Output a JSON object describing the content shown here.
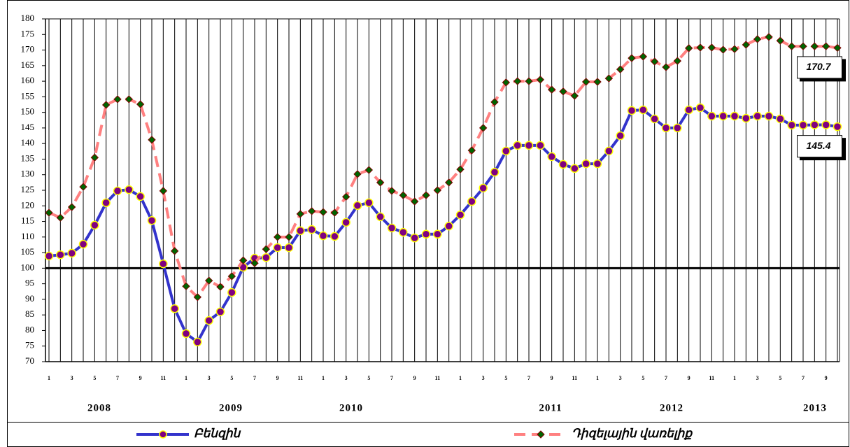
{
  "chart_data": {
    "type": "line",
    "categories": [
      "1",
      null,
      "3",
      null,
      "5",
      null,
      "7",
      null,
      "9",
      null,
      "11",
      null,
      "1",
      null,
      "3",
      null,
      "5",
      null,
      "7",
      null,
      "9",
      null,
      "11",
      null,
      "1",
      null,
      "3",
      null,
      "5",
      null,
      "7",
      null,
      "9",
      null,
      "11",
      null,
      "1",
      null,
      "3",
      null,
      "5",
      null,
      "7",
      null,
      "9",
      null,
      "11",
      null,
      "1",
      null,
      "3",
      null,
      "5",
      null,
      "7",
      null,
      "9",
      null,
      "11",
      null,
      "1",
      null,
      "3",
      null,
      "5",
      null,
      "7",
      null,
      "9",
      null
    ],
    "year_labels": [
      "2008",
      "2009",
      "2010",
      "2011",
      "2012",
      "2013"
    ],
    "ylim": [
      70,
      180
    ],
    "yticks": [
      70,
      75,
      80,
      85,
      90,
      95,
      100,
      105,
      110,
      115,
      120,
      125,
      130,
      135,
      140,
      145,
      150,
      155,
      160,
      165,
      170,
      175,
      180
    ],
    "reference_line": 100,
    "grid": true,
    "series": [
      {
        "name": "Բենզին",
        "color": "#3333cc",
        "marker_fill": "#800080",
        "marker_stroke": "#ffff00",
        "values": [
          103.9,
          104.3,
          104.8,
          107.7,
          113.8,
          121,
          124.8,
          125.2,
          123,
          115.3,
          101.4,
          87,
          79,
          76.3,
          83.2,
          86,
          92.2,
          100.3,
          103.2,
          103.4,
          106.6,
          106.6,
          112,
          112.4,
          110.4,
          110.2,
          114.7,
          120.1,
          121,
          116.5,
          112.9,
          111.5,
          109.7,
          110.9,
          110.9,
          113.5,
          117.1,
          121.4,
          125.7,
          130.8,
          137.6,
          139.4,
          139.4,
          139.4,
          135.8,
          133.3,
          132,
          133.5,
          133.5,
          137.6,
          142.5,
          150.6,
          150.8,
          147.9,
          145,
          145,
          150.8,
          151.5,
          148.8,
          148.8,
          148.8,
          148.1,
          148.8,
          148.8,
          147.9,
          145.9,
          145.9,
          146,
          146,
          145.4
        ],
        "value_labels": [
          null,
          null,
          null,
          null,
          null,
          null,
          null,
          null,
          null,
          null,
          null,
          null,
          null,
          null,
          null,
          null,
          null,
          null,
          null,
          null,
          null,
          null,
          null,
          null,
          null,
          null,
          null,
          null,
          null,
          null,
          null,
          null,
          null,
          null,
          null,
          null,
          null,
          null,
          null,
          null,
          null,
          null,
          null,
          null,
          null,
          null,
          null,
          null,
          null,
          null,
          null,
          null,
          null,
          null,
          null,
          null,
          null,
          null,
          null,
          null,
          null,
          null,
          null,
          null,
          null,
          null,
          null,
          null,
          null,
          "145.4"
        ]
      },
      {
        "name": "Դիզելային վառելիք",
        "color": "#ff8080",
        "marker_fill": "#006400",
        "marker_stroke": "#800000",
        "dashed": true,
        "values": [
          117.8,
          116.2,
          119.6,
          126.1,
          135.5,
          152.4,
          154.2,
          154.2,
          152.6,
          141.2,
          124.8,
          105.5,
          94.2,
          90.7,
          96,
          94,
          97.4,
          102.5,
          101.6,
          106.1,
          110,
          110,
          117.4,
          118.3,
          118,
          117.8,
          122.9,
          130.2,
          131.5,
          127.5,
          124.8,
          123.4,
          121.4,
          123.4,
          125,
          127.5,
          131.7,
          137.8,
          145,
          153.3,
          159.6,
          160,
          160,
          160.5,
          157.3,
          156.7,
          155.3,
          159.8,
          159.8,
          160.9,
          163.8,
          167.4,
          167.9,
          166.3,
          164.5,
          166.5,
          170.6,
          170.8,
          170.8,
          170.1,
          170.3,
          171.7,
          173.5,
          174.2,
          173,
          171.2,
          171.2,
          171.2,
          171.2,
          170.7
        ],
        "value_labels": [
          null,
          null,
          null,
          null,
          null,
          null,
          null,
          null,
          null,
          null,
          null,
          null,
          null,
          null,
          null,
          null,
          null,
          null,
          null,
          null,
          null,
          null,
          null,
          null,
          null,
          null,
          null,
          null,
          null,
          null,
          null,
          null,
          null,
          null,
          null,
          null,
          null,
          null,
          null,
          null,
          null,
          null,
          null,
          null,
          null,
          null,
          null,
          null,
          null,
          null,
          null,
          null,
          null,
          null,
          null,
          null,
          null,
          null,
          null,
          null,
          null,
          null,
          null,
          null,
          null,
          null,
          null,
          null,
          null,
          "170.7"
        ]
      }
    ]
  }
}
